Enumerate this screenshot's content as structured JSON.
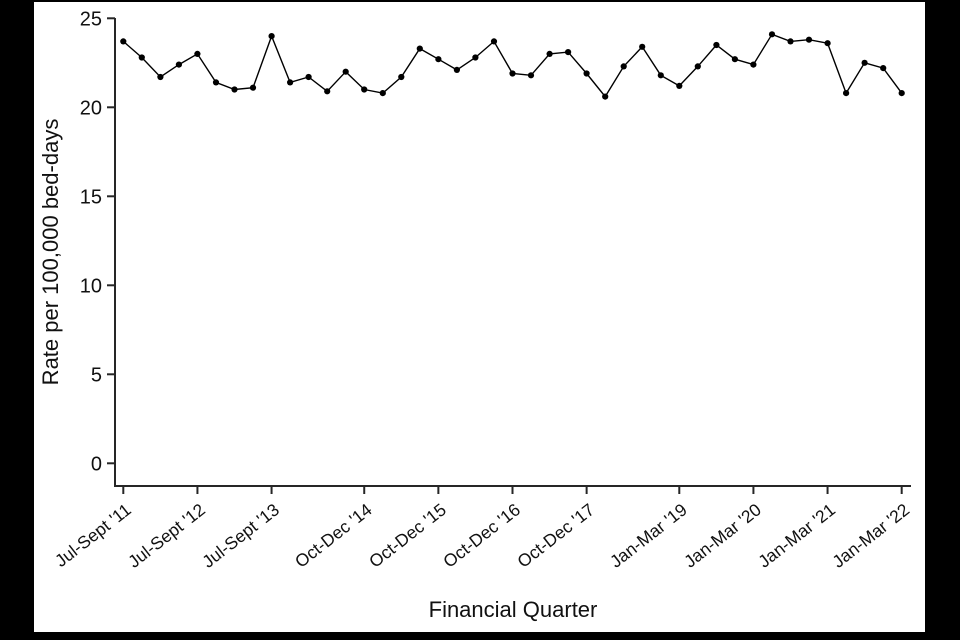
{
  "canvas": {
    "background_color": "#000000",
    "panel_color": "#ffffff",
    "axis_color": "#262626",
    "text_color": "#111111"
  },
  "chart_data": {
    "type": "line",
    "title": "",
    "xlabel": "Financial Quarter",
    "ylabel": "Rate per 100,000 bed-days",
    "ylim": [
      0,
      25
    ],
    "y_ticks": [
      0,
      5,
      10,
      15,
      20,
      25
    ],
    "grid": false,
    "legend": false,
    "line_color": "#000000",
    "marker": "filled-circle",
    "x_tick_marks": [
      {
        "index": 0,
        "label": "Jul-Sept '11"
      },
      {
        "index": 4,
        "label": "Jul-Sept '12"
      },
      {
        "index": 8,
        "label": "Jul-Sept '13"
      },
      {
        "index": 13,
        "label": "Oct-Dec '14"
      },
      {
        "index": 17,
        "label": "Oct-Dec '15"
      },
      {
        "index": 21,
        "label": "Oct-Dec '16"
      },
      {
        "index": 25,
        "label": "Oct-Dec '17"
      },
      {
        "index": 30,
        "label": "Jan-Mar '19"
      },
      {
        "index": 34,
        "label": "Jan-Mar '20"
      },
      {
        "index": 38,
        "label": "Jan-Mar '21"
      },
      {
        "index": 42,
        "label": "Jan-Mar '22"
      }
    ],
    "categories": [
      "Jul-Sept '11",
      "Oct-Dec '11",
      "Jan-Mar '12",
      "Apr-Jun '12",
      "Jul-Sept '12",
      "Oct-Dec '12",
      "Jan-Mar '13",
      "Apr-Jun '13",
      "Jul-Sept '13",
      "Oct-Dec '13",
      "Jan-Mar '14",
      "Apr-Jun '14",
      "Jul-Sept '14",
      "Oct-Dec '14",
      "Jan-Mar '15",
      "Apr-Jun '15",
      "Jul-Sept '15",
      "Oct-Dec '15",
      "Jan-Mar '16",
      "Apr-Jun '16",
      "Jul-Sept '16",
      "Oct-Dec '16",
      "Jan-Mar '17",
      "Apr-Jun '17",
      "Jul-Sept '17",
      "Oct-Dec '17",
      "Jan-Mar '18",
      "Apr-Jun '18",
      "Jul-Sept '18",
      "Oct-Dec '18",
      "Jan-Mar '19",
      "Apr-Jun '19",
      "Jul-Sept '19",
      "Oct-Dec '19",
      "Jan-Mar '20",
      "Apr-Jun '20",
      "Jul-Sept '20",
      "Oct-Dec '20",
      "Jan-Mar '21",
      "Apr-Jun '21",
      "Jul-Sept '21",
      "Oct-Dec '21",
      "Jan-Mar '22"
    ],
    "values": [
      23.7,
      22.8,
      21.7,
      22.4,
      23.0,
      21.4,
      21.0,
      21.1,
      24.0,
      21.4,
      21.7,
      20.9,
      22.0,
      21.0,
      20.8,
      21.7,
      23.3,
      22.7,
      22.1,
      22.8,
      23.7,
      21.9,
      21.8,
      23.0,
      23.1,
      21.9,
      20.6,
      22.3,
      23.4,
      21.8,
      21.2,
      22.3,
      23.5,
      22.7,
      22.4,
      24.1,
      23.7,
      23.8,
      23.6,
      20.8,
      22.5,
      22.2,
      20.8
    ]
  }
}
